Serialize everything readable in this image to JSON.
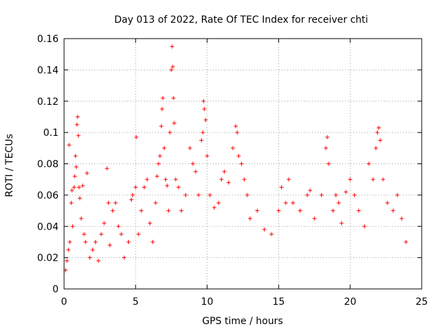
{
  "chart_data": {
    "type": "scatter",
    "title": "Day 013 of 2022, Rate Of TEC Index for receiver chti",
    "xlabel": "GPS time / hours",
    "ylabel": "ROTI / TECUs",
    "xlim": [
      0,
      25
    ],
    "ylim": [
      0,
      0.16
    ],
    "x_ticks": [
      0,
      5,
      10,
      15,
      20,
      25
    ],
    "y_ticks": [
      0,
      0.02,
      0.04,
      0.06,
      0.08,
      0.1,
      0.12,
      0.14,
      0.16
    ],
    "x_tick_labels": [
      "0",
      "5",
      "10",
      "15",
      "20",
      "25"
    ],
    "y_tick_labels": [
      "0",
      "0.02",
      "0.04",
      "0.06",
      "0.08",
      "0.1",
      "0.12",
      "0.14",
      "0.16"
    ],
    "grid": true,
    "marker": "+",
    "color": "#ff0000",
    "points": [
      [
        0.1,
        0.012
      ],
      [
        0.2,
        0.018
      ],
      [
        0.3,
        0.025
      ],
      [
        0.35,
        0.092
      ],
      [
        0.4,
        0.03
      ],
      [
        0.5,
        0.055
      ],
      [
        0.55,
        0.063
      ],
      [
        0.6,
        0.04
      ],
      [
        0.7,
        0.065
      ],
      [
        0.75,
        0.072
      ],
      [
        0.8,
        0.085
      ],
      [
        0.85,
        0.078
      ],
      [
        0.9,
        0.105
      ],
      [
        0.95,
        0.11
      ],
      [
        1.0,
        0.098
      ],
      [
        1.05,
        0.065
      ],
      [
        1.1,
        0.058
      ],
      [
        1.2,
        0.045
      ],
      [
        1.3,
        0.066
      ],
      [
        1.4,
        0.035
      ],
      [
        1.5,
        0.03
      ],
      [
        1.6,
        0.074
      ],
      [
        1.8,
        0.02
      ],
      [
        2.0,
        0.025
      ],
      [
        2.2,
        0.03
      ],
      [
        2.4,
        0.018
      ],
      [
        2.6,
        0.035
      ],
      [
        2.8,
        0.042
      ],
      [
        3.0,
        0.077
      ],
      [
        3.1,
        0.055
      ],
      [
        3.2,
        0.028
      ],
      [
        3.4,
        0.05
      ],
      [
        3.6,
        0.055
      ],
      [
        3.8,
        0.04
      ],
      [
        4.0,
        0.035
      ],
      [
        4.2,
        0.02
      ],
      [
        4.5,
        0.03
      ],
      [
        4.7,
        0.057
      ],
      [
        4.8,
        0.06
      ],
      [
        5.0,
        0.065
      ],
      [
        5.05,
        0.097
      ],
      [
        5.2,
        0.035
      ],
      [
        5.4,
        0.05
      ],
      [
        5.6,
        0.065
      ],
      [
        5.8,
        0.07
      ],
      [
        6.0,
        0.042
      ],
      [
        6.2,
        0.03
      ],
      [
        6.4,
        0.055
      ],
      [
        6.5,
        0.072
      ],
      [
        6.6,
        0.08
      ],
      [
        6.7,
        0.085
      ],
      [
        6.8,
        0.104
      ],
      [
        6.85,
        0.115
      ],
      [
        6.9,
        0.122
      ],
      [
        7.0,
        0.09
      ],
      [
        7.1,
        0.07
      ],
      [
        7.2,
        0.066
      ],
      [
        7.3,
        0.05
      ],
      [
        7.4,
        0.1
      ],
      [
        7.5,
        0.14
      ],
      [
        7.55,
        0.155
      ],
      [
        7.6,
        0.142
      ],
      [
        7.65,
        0.122
      ],
      [
        7.7,
        0.106
      ],
      [
        7.8,
        0.07
      ],
      [
        8.0,
        0.065
      ],
      [
        8.2,
        0.05
      ],
      [
        8.5,
        0.06
      ],
      [
        8.8,
        0.09
      ],
      [
        9.0,
        0.08
      ],
      [
        9.2,
        0.075
      ],
      [
        9.4,
        0.06
      ],
      [
        9.6,
        0.095
      ],
      [
        9.7,
        0.1
      ],
      [
        9.75,
        0.12
      ],
      [
        9.8,
        0.115
      ],
      [
        9.9,
        0.108
      ],
      [
        10.0,
        0.085
      ],
      [
        10.2,
        0.06
      ],
      [
        10.5,
        0.052
      ],
      [
        10.8,
        0.055
      ],
      [
        11.0,
        0.07
      ],
      [
        11.2,
        0.075
      ],
      [
        11.5,
        0.068
      ],
      [
        11.8,
        0.09
      ],
      [
        12.0,
        0.104
      ],
      [
        12.1,
        0.1
      ],
      [
        12.2,
        0.085
      ],
      [
        12.4,
        0.08
      ],
      [
        12.6,
        0.07
      ],
      [
        12.8,
        0.06
      ],
      [
        13.0,
        0.045
      ],
      [
        13.5,
        0.05
      ],
      [
        14.0,
        0.038
      ],
      [
        14.5,
        0.035
      ],
      [
        15.0,
        0.05
      ],
      [
        15.2,
        0.065
      ],
      [
        15.5,
        0.055
      ],
      [
        15.7,
        0.07
      ],
      [
        16.0,
        0.055
      ],
      [
        16.5,
        0.05
      ],
      [
        17.0,
        0.06
      ],
      [
        17.2,
        0.063
      ],
      [
        17.5,
        0.045
      ],
      [
        18.0,
        0.06
      ],
      [
        18.3,
        0.09
      ],
      [
        18.4,
        0.097
      ],
      [
        18.5,
        0.08
      ],
      [
        18.8,
        0.05
      ],
      [
        19.0,
        0.06
      ],
      [
        19.2,
        0.055
      ],
      [
        19.4,
        0.042
      ],
      [
        19.7,
        0.062
      ],
      [
        20.0,
        0.07
      ],
      [
        20.3,
        0.06
      ],
      [
        20.6,
        0.05
      ],
      [
        21.0,
        0.04
      ],
      [
        21.3,
        0.08
      ],
      [
        21.6,
        0.07
      ],
      [
        21.8,
        0.09
      ],
      [
        21.9,
        0.1
      ],
      [
        22.0,
        0.103
      ],
      [
        22.1,
        0.095
      ],
      [
        22.3,
        0.07
      ],
      [
        22.6,
        0.055
      ],
      [
        23.0,
        0.05
      ],
      [
        23.3,
        0.06
      ],
      [
        23.6,
        0.045
      ],
      [
        23.9,
        0.03
      ]
    ]
  }
}
